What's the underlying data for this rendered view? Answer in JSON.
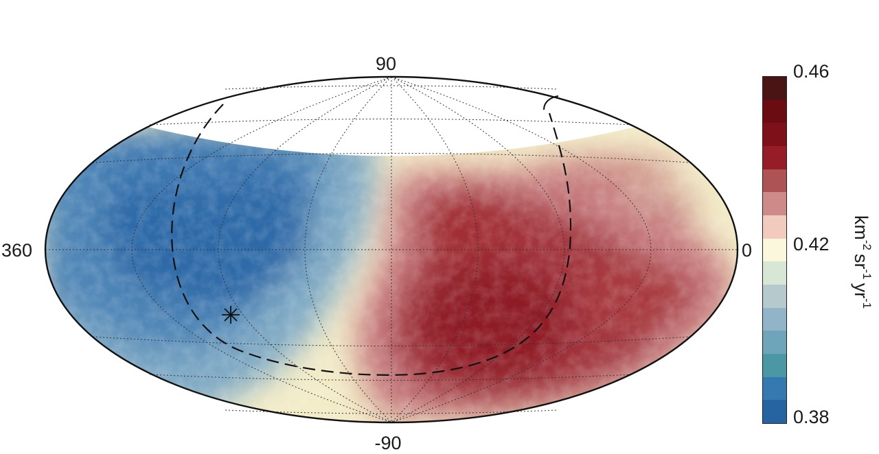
{
  "map": {
    "projection": "hammer-aitoff",
    "lat_top_label": "90",
    "lat_bottom_label": "-90",
    "lon_left_label": "360",
    "lon_right_label": "0",
    "grid_style": "dotted",
    "overlay": {
      "dashed_circle": "visible",
      "star_marker": "visible"
    }
  },
  "colorbar": {
    "max_label": "0.46",
    "mid_label": "0.42",
    "min_label": "0.38",
    "unit": {
      "km": "km",
      "km_exp": "-2",
      "sr": "sr",
      "sr_exp": "-1",
      "yr": "yr",
      "yr_exp": "-1"
    },
    "colors": [
      "#4a1414",
      "#6b0c12",
      "#7e1019",
      "#961c28",
      "#ad5356",
      "#cd8a89",
      "#f1cbbd",
      "#fbf7dc",
      "#d8e6d6",
      "#b6cace",
      "#92b4c8",
      "#6ea5ba",
      "#4c97a6",
      "#3479af",
      "#2563a1"
    ]
  }
}
